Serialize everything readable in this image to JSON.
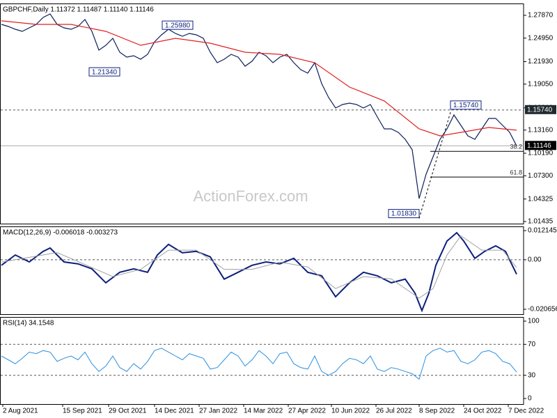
{
  "chart_data": [
    {
      "type": "line",
      "title": "GBPCHF,Daily  1.11372 1.11487 1.11140 1.11146",
      "watermark": "ActionForex.com",
      "xlim": [
        -1,
        375
      ],
      "xticks": [
        {
          "value": 1,
          "label": "2 Aug 2021"
        },
        {
          "value": 44,
          "label": "15 Sep 2021"
        },
        {
          "value": 77,
          "label": "29 Oct 2021"
        },
        {
          "value": 110,
          "label": "14 Dec 2021"
        },
        {
          "value": 142,
          "label": "27 Jan 2022"
        },
        {
          "value": 174,
          "label": "14 Mar 2022"
        },
        {
          "value": 206,
          "label": "27 Apr 2022"
        },
        {
          "value": 237,
          "label": "10 Jun 2022"
        },
        {
          "value": 269,
          "label": "26 Jul 2022"
        },
        {
          "value": 300,
          "label": "8 Sep 2022"
        },
        {
          "value": 332,
          "label": "24 Oct 2022"
        },
        {
          "value": 364,
          "label": "7 Dec 2022"
        }
      ],
      "ylim": [
        1.01167,
        1.29388
      ],
      "yticks": [
        {
          "value": 1.2787,
          "label": "1.27870"
        },
        {
          "value": 1.2495,
          "label": "1.24950"
        },
        {
          "value": 1.2193,
          "label": "1.21930"
        },
        {
          "value": 1.1905,
          "label": "1.19050"
        },
        {
          "value": 1.1601,
          "label": "1.16010"
        },
        {
          "value": 1.1316,
          "label": "1.13160"
        },
        {
          "value": 1.1019,
          "label": "1.10190"
        },
        {
          "value": 1.073,
          "label": "1.07300"
        },
        {
          "value": 1.04325,
          "label": "1.04325"
        },
        {
          "value": 1.01435,
          "label": "1.01435"
        }
      ],
      "series": [
        {
          "color": "#0c1f5c",
          "x": [
            0,
            5,
            10,
            15,
            20,
            25,
            30,
            35,
            40,
            45,
            50,
            55,
            60,
            65,
            70,
            75,
            80,
            85,
            90,
            95,
            100,
            105,
            110,
            115,
            120,
            125,
            130,
            135,
            140,
            145,
            150,
            155,
            160,
            165,
            170,
            175,
            180,
            185,
            190,
            195,
            200,
            205,
            210,
            215,
            220,
            225,
            230,
            235,
            240,
            245,
            250,
            255,
            260,
            265,
            270,
            275,
            280,
            285,
            290,
            295,
            300,
            305,
            310,
            315,
            320,
            325,
            330,
            335,
            340,
            345,
            350,
            355,
            360,
            365,
            370
          ],
          "values": [
            1.2671,
            1.2644,
            1.2608,
            1.2582,
            1.2626,
            1.2671,
            1.276,
            1.2805,
            1.2671,
            1.2626,
            1.2608,
            1.2644,
            1.2733,
            1.2582,
            1.234,
            1.2403,
            1.2492,
            1.2314,
            1.2251,
            1.2269,
            1.2224,
            1.2287,
            1.2448,
            1.2537,
            1.2608,
            1.2555,
            1.2519,
            1.2555,
            1.2537,
            1.2492,
            1.2314,
            1.218,
            1.2224,
            1.2287,
            1.2251,
            1.2135,
            1.2198,
            1.2314,
            1.2269,
            1.218,
            1.2251,
            1.2287,
            1.218,
            1.209,
            1.2046,
            1.218,
            1.1912,
            1.1733,
            1.1599,
            1.1644,
            1.1662,
            1.1644,
            1.1599,
            1.1644,
            1.1483,
            1.1331,
            1.1331,
            1.1287,
            1.1197,
            1.1064,
            1.0438,
            1.0751,
            1.0974,
            1.1197,
            1.1331,
            1.151,
            1.1376,
            1.1242,
            1.1197,
            1.1331,
            1.1465,
            1.1465,
            1.1376,
            1.1287,
            1.11146
          ]
        },
        {
          "color": "#e02020",
          "x": [
            0,
            25,
            50,
            75,
            100,
            125,
            150,
            175,
            200,
            225,
            250,
            275,
            300,
            315,
            330,
            350,
            370
          ],
          "values": [
            1.2716,
            1.2671,
            1.2671,
            1.2582,
            1.2403,
            1.2492,
            1.243,
            1.2314,
            1.2287,
            1.218,
            1.1867,
            1.1689,
            1.1331,
            1.1242,
            1.1287,
            1.1349,
            1.1314
          ]
        }
      ],
      "annotations": [
        {
          "x": 116,
          "value": 1.2598,
          "label": "1.25980"
        },
        {
          "x": 85,
          "value": 1.2134,
          "label": "1.21340"
        },
        {
          "x": 323,
          "value": 1.1574,
          "label": "1.15740"
        },
        {
          "x": 300,
          "value": 1.0183,
          "label": "1.01830"
        }
      ],
      "levels": [
        {
          "value": 1.1574,
          "label": "1.15740",
          "style": "dashed",
          "label_color": "#1e2a30"
        },
        {
          "value": 1.11146,
          "label": "1.11146",
          "style": "solid",
          "label_color": "#000000"
        }
      ],
      "fib_levels": [
        {
          "value": 1.1043,
          "label": "38.2"
        },
        {
          "value": 1.0714,
          "label": "61.8"
        }
      ]
    },
    {
      "type": "line",
      "title": "MACD(12,26,9) -0.006018 -0.003273",
      "ylim": [
        -0.0227,
        0.0139
      ],
      "yticks": [
        0.012145,
        {
          "value": 0,
          "label": "0.00"
        },
        -0.020656
      ],
      "levels": [
        0
      ],
      "series": [
        {
          "color": "#0c1f7c",
          "width": 2,
          "x": [
            0,
            10,
            20,
            30,
            35,
            45,
            55,
            65,
            75,
            85,
            95,
            105,
            112,
            120,
            130,
            140,
            150,
            160,
            170,
            180,
            190,
            200,
            210,
            220,
            230,
            240,
            250,
            260,
            270,
            280,
            290,
            297,
            302,
            307,
            312,
            320,
            327,
            332,
            340,
            347,
            355,
            362,
            370
          ],
          "values": [
            -0.0023,
            0.002,
            -0.0009,
            0.0035,
            0.0049,
            -0.0009,
            -0.0017,
            -0.0038,
            -0.0096,
            -0.0052,
            -0.0038,
            -0.0052,
            0.002,
            0.0064,
            0.0029,
            0.0035,
            0.0012,
            -0.0081,
            -0.0052,
            -0.0023,
            -0.0009,
            -0.0017,
            0.0006,
            -0.0052,
            -0.0067,
            -0.0154,
            -0.0096,
            -0.0052,
            -0.0067,
            -0.0096,
            -0.0081,
            -0.0139,
            -0.0212,
            -0.0139,
            -0.0023,
            0.0078,
            0.0113,
            0.0078,
            0.0006,
            0.0035,
            0.0058,
            0.0035,
            -0.006018
          ]
        },
        {
          "color": "#a0a0a0",
          "width": 1,
          "x": [
            0,
            20,
            40,
            60,
            80,
            100,
            120,
            140,
            160,
            180,
            200,
            220,
            240,
            260,
            280,
            300,
            310,
            320,
            330,
            345,
            360,
            370
          ],
          "values": [
            -0.001,
            0.001,
            0.003,
            -0.002,
            -0.007,
            -0.004,
            0.004,
            0.004,
            -0.004,
            -0.004,
            -0.001,
            -0.003,
            -0.012,
            -0.007,
            -0.008,
            -0.016,
            -0.012,
            0.002,
            0.01,
            0.004,
            0.004,
            -0.003273
          ]
        }
      ]
    },
    {
      "type": "line",
      "title": "RSI(14) 34.1548",
      "ylim": [
        -7.2,
        105.4
      ],
      "yticks": [
        100,
        70,
        30,
        0
      ],
      "levels": [
        70,
        30
      ],
      "series": [
        {
          "color": "#2a8fe0",
          "width": 1,
          "x": [
            0,
            5,
            10,
            15,
            20,
            25,
            30,
            35,
            40,
            45,
            50,
            55,
            60,
            65,
            70,
            75,
            80,
            85,
            90,
            95,
            100,
            105,
            110,
            115,
            120,
            125,
            130,
            135,
            140,
            145,
            150,
            155,
            160,
            165,
            170,
            175,
            180,
            185,
            190,
            195,
            200,
            205,
            210,
            215,
            220,
            225,
            230,
            235,
            240,
            245,
            250,
            255,
            260,
            265,
            270,
            275,
            280,
            285,
            290,
            295,
            300,
            305,
            310,
            315,
            320,
            325,
            330,
            335,
            340,
            345,
            350,
            355,
            360,
            365,
            370
          ],
          "values": [
            55,
            50,
            45,
            52,
            60,
            58,
            62,
            60,
            48,
            52,
            55,
            50,
            60,
            45,
            35,
            42,
            55,
            40,
            35,
            45,
            38,
            48,
            62,
            65,
            60,
            55,
            50,
            58,
            55,
            52,
            38,
            40,
            50,
            60,
            55,
            42,
            50,
            62,
            55,
            45,
            58,
            60,
            45,
            40,
            38,
            55,
            35,
            30,
            35,
            45,
            52,
            50,
            45,
            55,
            38,
            35,
            40,
            38,
            35,
            32,
            25,
            55,
            62,
            65,
            60,
            62,
            48,
            45,
            50,
            60,
            62,
            58,
            48,
            45,
            34.1548
          ]
        }
      ]
    }
  ]
}
